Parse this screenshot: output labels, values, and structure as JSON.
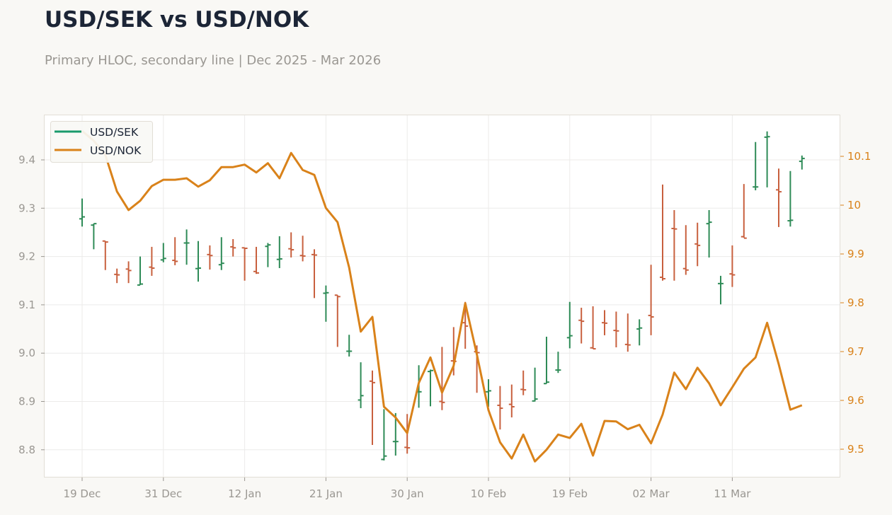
{
  "header": {
    "title": "USD/SEK vs USD/NOK",
    "subtitle": "Primary HLOC, secondary line | Dec 2025 - Mar 2026"
  },
  "legend": [
    {
      "label": "USD/SEK",
      "color": "#1a9a6c"
    },
    {
      "label": "USD/NOK",
      "color": "#d9821a"
    }
  ],
  "colors": {
    "up": "#2e8b57",
    "down": "#c8603e",
    "nok_line": "#d9821a",
    "grid": "#ecebea",
    "background": "#f9f8f5",
    "plot_background": "#ffffff"
  },
  "chart_data": {
    "type": "ohlc+line",
    "title": "USD/SEK vs USD/NOK",
    "subtitle": "Primary HLOC, secondary line | Dec 2025 - Mar 2026",
    "xlabel": "",
    "ylabel_left": "USD/SEK",
    "ylabel_right": "USD/NOK",
    "ylim_left": [
      8.74,
      9.49
    ],
    "ylim_right": [
      9.44,
      10.19
    ],
    "yticks_left": [
      8.8,
      8.9,
      9.0,
      9.1,
      9.2,
      9.3,
      9.4
    ],
    "yticks_left_labels": [
      "8.8",
      "8.9",
      "9.0",
      "9.1",
      "9.2",
      "9.3",
      "9.4"
    ],
    "yticks_right": [
      9.5,
      9.6,
      9.7,
      9.8,
      9.9,
      10.0,
      10.1
    ],
    "yticks_right_labels": [
      "9.5",
      "9.6",
      "9.7",
      "9.8",
      "9.9",
      "10",
      "10.1"
    ],
    "xticks": [
      {
        "index": 0,
        "label": "19 Dec"
      },
      {
        "index": 7,
        "label": "31 Dec"
      },
      {
        "index": 14,
        "label": "12 Jan"
      },
      {
        "index": 21,
        "label": "21 Jan"
      },
      {
        "index": 28,
        "label": "30 Jan"
      },
      {
        "index": 35,
        "label": "10 Feb"
      },
      {
        "index": 42,
        "label": "19 Feb"
      },
      {
        "index": 49,
        "label": "02 Mar"
      },
      {
        "index": 56,
        "label": "11 Mar"
      }
    ],
    "grid": true,
    "legend_position": "upper left",
    "series": [
      {
        "name": "USD/SEK",
        "type": "ohlc",
        "axis": "left",
        "open": [
          9.278,
          9.265,
          9.232,
          9.163,
          9.174,
          9.141,
          9.178,
          9.193,
          9.192,
          9.228,
          9.175,
          9.204,
          9.183,
          9.22,
          9.218,
          9.169,
          9.221,
          9.194,
          9.216,
          9.202,
          9.204,
          9.124,
          9.12,
          9.004,
          8.903,
          8.942,
          8.78,
          8.817,
          8.805,
          8.92,
          8.962,
          8.9,
          8.984,
          9.063,
          9.003,
          8.92,
          8.892,
          8.894,
          8.925,
          8.901,
          8.937,
          8.965,
          9.032,
          9.068,
          9.011,
          9.063,
          9.047,
          9.018,
          9.05,
          9.078,
          9.157,
          9.258,
          9.175,
          9.226,
          9.268,
          9.144,
          9.164,
          9.241,
          9.344,
          9.447,
          9.338,
          9.274,
          9.397
        ],
        "high": [
          9.32,
          9.268,
          9.232,
          9.175,
          9.19,
          9.2,
          9.22,
          9.228,
          9.24,
          9.256,
          9.232,
          9.223,
          9.24,
          9.236,
          9.218,
          9.22,
          9.228,
          9.242,
          9.25,
          9.243,
          9.215,
          9.14,
          9.12,
          9.038,
          8.981,
          8.964,
          8.884,
          8.876,
          8.874,
          8.975,
          8.966,
          9.013,
          9.054,
          9.106,
          9.016,
          8.946,
          8.932,
          8.935,
          8.964,
          8.97,
          9.034,
          9.003,
          9.106,
          9.094,
          9.097,
          9.089,
          9.086,
          9.082,
          9.07,
          9.183,
          9.349,
          9.296,
          9.265,
          9.27,
          9.296,
          9.16,
          9.223,
          9.35,
          9.437,
          9.459,
          9.382,
          9.377,
          9.409
        ],
        "low": [
          9.262,
          9.215,
          9.172,
          9.145,
          9.145,
          9.141,
          9.16,
          9.188,
          9.182,
          9.183,
          9.148,
          9.173,
          9.172,
          9.2,
          9.15,
          9.164,
          9.178,
          9.176,
          9.198,
          9.19,
          9.114,
          9.065,
          9.013,
          8.993,
          8.886,
          8.81,
          8.778,
          8.788,
          8.792,
          8.887,
          8.89,
          8.882,
          8.954,
          9.009,
          8.918,
          8.889,
          8.842,
          8.867,
          8.913,
          8.9,
          8.937,
          8.959,
          9.01,
          9.02,
          9.009,
          9.037,
          9.012,
          9.003,
          9.016,
          9.037,
          9.15,
          9.15,
          9.162,
          9.18,
          9.198,
          9.101,
          9.137,
          9.239,
          9.337,
          9.343,
          9.261,
          9.262,
          9.38
        ],
        "close": [
          9.282,
          9.268,
          9.23,
          9.162,
          9.171,
          9.143,
          9.176,
          9.196,
          9.19,
          9.228,
          9.176,
          9.202,
          9.186,
          9.218,
          9.217,
          9.166,
          9.224,
          9.195,
          9.214,
          9.201,
          9.203,
          9.125,
          9.117,
          9.004,
          8.912,
          8.939,
          8.787,
          8.817,
          8.804,
          8.92,
          8.964,
          8.898,
          8.983,
          9.056,
          9.001,
          8.922,
          8.886,
          8.889,
          8.924,
          8.905,
          8.94,
          8.965,
          9.036,
          9.066,
          9.009,
          9.062,
          9.046,
          9.017,
          9.052,
          9.075,
          9.154,
          9.257,
          9.172,
          9.223,
          9.271,
          9.144,
          9.162,
          9.238,
          9.344,
          9.448,
          9.334,
          9.275,
          9.403
        ]
      },
      {
        "name": "USD/NOK",
        "type": "line",
        "axis": "right",
        "values": [
          10.152,
          10.132,
          10.103,
          10.028,
          9.99,
          10.009,
          10.039,
          10.052,
          10.052,
          10.055,
          10.038,
          10.051,
          10.078,
          10.078,
          10.083,
          10.067,
          10.086,
          10.055,
          10.107,
          10.072,
          10.062,
          9.994,
          9.965,
          9.872,
          9.741,
          9.771,
          9.587,
          9.565,
          9.533,
          9.636,
          9.688,
          9.616,
          9.671,
          9.799,
          9.694,
          9.58,
          9.514,
          9.481,
          9.53,
          9.475,
          9.499,
          9.53,
          9.523,
          9.552,
          9.487,
          9.558,
          9.557,
          9.541,
          9.55,
          9.512,
          9.571,
          9.657,
          9.623,
          9.667,
          9.635,
          9.59,
          9.627,
          9.665,
          9.688,
          9.759,
          9.674,
          9.581,
          9.59
        ]
      }
    ]
  }
}
